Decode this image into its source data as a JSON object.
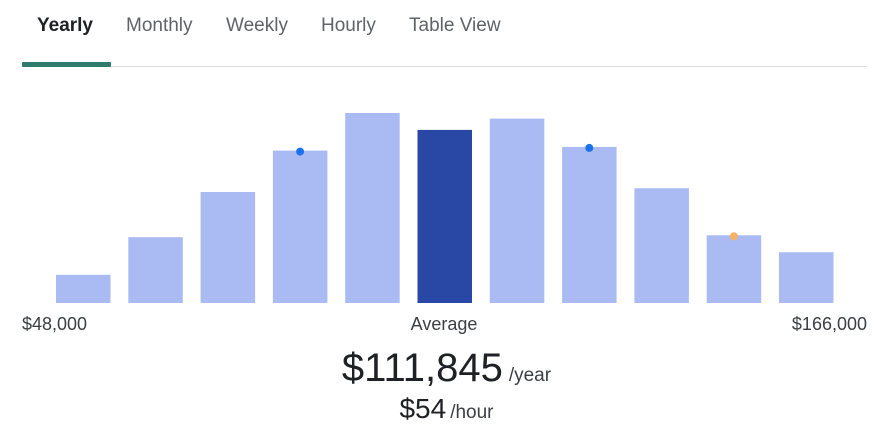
{
  "tabs": [
    {
      "label": "Yearly",
      "active": true
    },
    {
      "label": "Monthly",
      "active": false
    },
    {
      "label": "Weekly",
      "active": false
    },
    {
      "label": "Hourly",
      "active": false
    },
    {
      "label": "Table View",
      "active": false
    }
  ],
  "colors": {
    "accent_tab": "#2d7d6a",
    "bar": "#a9bbf2",
    "bar_highlight": "#2948a5",
    "marker_blue": "#1a73e8",
    "marker_orange": "#f4b266"
  },
  "chart_data": {
    "type": "bar",
    "values": [
      15,
      35,
      59,
      81,
      101,
      92,
      98,
      83,
      61,
      36,
      27
    ],
    "highlight_index": 5,
    "ylim": [
      0,
      101
    ],
    "markers": [
      {
        "bar_index": 3,
        "color": "blue"
      },
      {
        "bar_index": 7,
        "color": "blue"
      },
      {
        "bar_index": 9,
        "color": "orange"
      }
    ],
    "x_min_label": "$48,000",
    "x_center_label": "Average",
    "x_max_label": "$166,000"
  },
  "salary": {
    "yearly_amount": "$111,845",
    "yearly_unit": "/year",
    "hourly_amount": "$54",
    "hourly_unit": "/hour"
  }
}
